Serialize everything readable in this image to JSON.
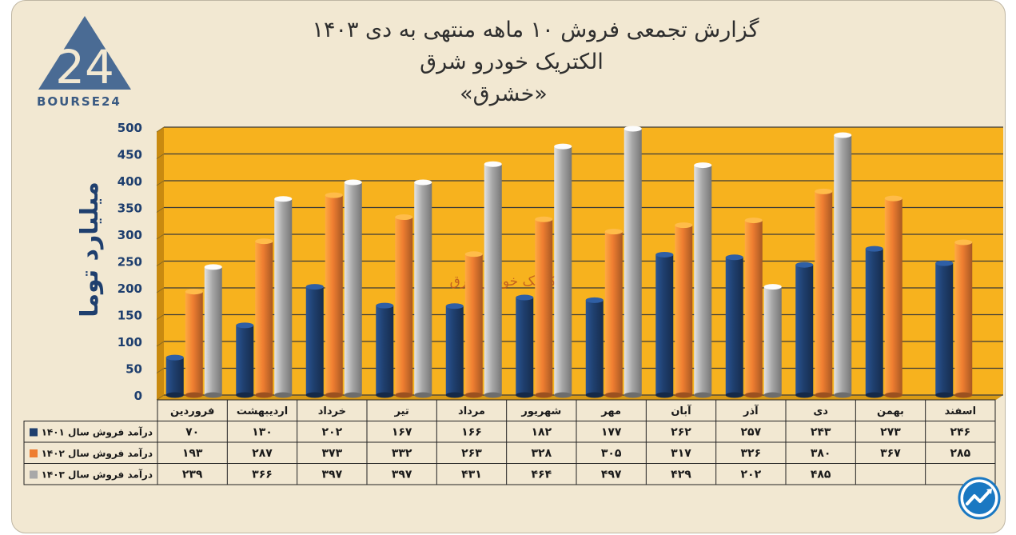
{
  "title": {
    "line1": "گزارش تجمعی فروش ۱۰ ماهه منتهی به دی ۱۴۰۳",
    "line2": "الکتریک خودرو شرق",
    "line3": "«خشرق»"
  },
  "logo": {
    "text": "BOURSE24",
    "mark": "24"
  },
  "watermark": "الکتریک خودرو شرق",
  "colors": {
    "plot_bg": "#f7b21e",
    "series_1401": "#1f3f6e",
    "series_1402": "#ee7d31",
    "series_1403": "#a8a8a8",
    "axis_text": "#1f3f6e",
    "watermark": "#c05a1e"
  },
  "chart_data": {
    "type": "bar",
    "title": "گزارش تجمعی فروش ۱۰ ماهه منتهی به دی ۱۴۰۳",
    "ylabel": "میلیارد توما",
    "xlabel": "",
    "ylim": [
      0,
      500
    ],
    "yticks": [
      0,
      50,
      100,
      150,
      200,
      250,
      300,
      350,
      400,
      450,
      500
    ],
    "ytick_labels": [
      "0",
      "50",
      "100",
      "150",
      "200",
      "250",
      "300",
      "350",
      "400",
      "450",
      "500"
    ],
    "grid": true,
    "categories": [
      "فروردین",
      "اردیبهشت",
      "خرداد",
      "تیر",
      "مرداد",
      "شهریور",
      "مهر",
      "آبان",
      "آذر",
      "دی",
      "بهمن",
      "اسفند"
    ],
    "series": [
      {
        "name": "درآمد فروش سال ۱۴۰۱",
        "values": [
          70,
          130,
          202,
          167,
          166,
          182,
          177,
          262,
          257,
          243,
          273,
          246
        ],
        "labels": [
          "۷۰",
          "۱۳۰",
          "۲۰۲",
          "۱۶۷",
          "۱۶۶",
          "۱۸۲",
          "۱۷۷",
          "۲۶۲",
          "۲۵۷",
          "۲۴۳",
          "۲۷۳",
          "۲۴۶"
        ]
      },
      {
        "name": "درآمد فروش سال ۱۴۰۲",
        "values": [
          193,
          287,
          373,
          332,
          263,
          328,
          305,
          317,
          326,
          380,
          367,
          285
        ],
        "labels": [
          "۱۹۳",
          "۲۸۷",
          "۳۷۳",
          "۳۳۲",
          "۲۶۳",
          "۳۲۸",
          "۳۰۵",
          "۳۱۷",
          "۳۲۶",
          "۳۸۰",
          "۳۶۷",
          "۲۸۵"
        ]
      },
      {
        "name": "درآمد فروش سال ۱۴۰۳",
        "values": [
          239,
          366,
          397,
          397,
          431,
          464,
          497,
          429,
          202,
          485,
          null,
          null
        ],
        "labels": [
          "۲۳۹",
          "۳۶۶",
          "۳۹۷",
          "۳۹۷",
          "۴۳۱",
          "۴۶۴",
          "۴۹۷",
          "۴۲۹",
          "۲۰۲",
          "۴۸۵",
          "",
          ""
        ]
      }
    ]
  }
}
